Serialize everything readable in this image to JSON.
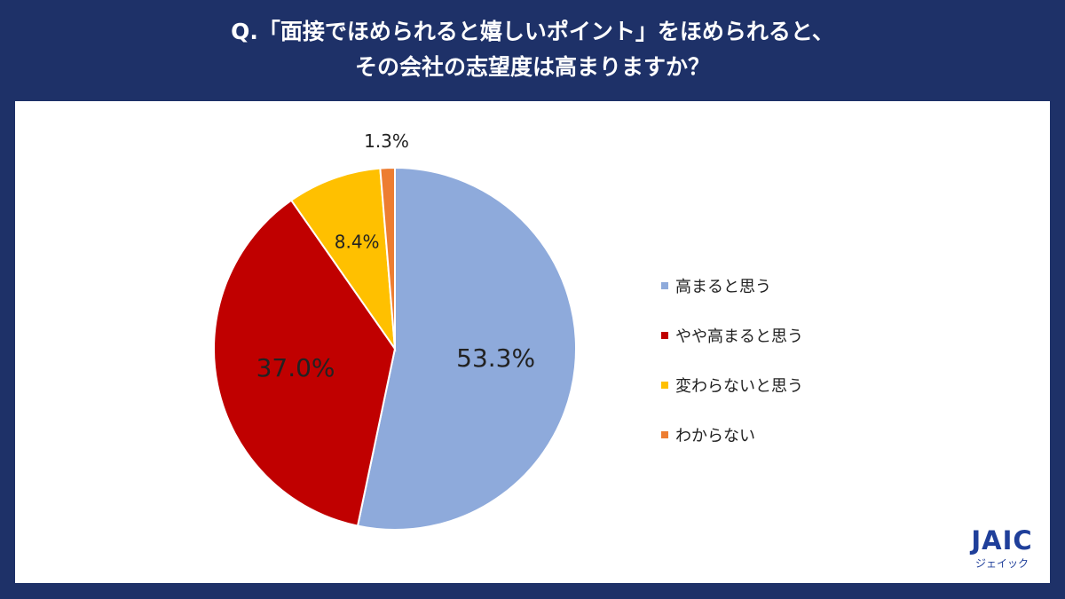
{
  "header": {
    "line1": "Q.「面接でほめられると嬉しいポイント」をほめられると、",
    "line2": "その会社の志望度は高まりますか？"
  },
  "chart_data": {
    "type": "pie",
    "categories": [
      "高まると思う",
      "やや高まると思う",
      "変わらないと思う",
      "わからない"
    ],
    "values": [
      53.3,
      37.0,
      8.4,
      1.3
    ],
    "labels": [
      "53.3%",
      "37.0%",
      "8.4%",
      "1.3%"
    ],
    "colors": [
      "#8eaadb",
      "#c00000",
      "#ffc000",
      "#ed7d31"
    ],
    "legend_position": "right",
    "start_angle": "12 o'clock",
    "direction": "clockwise"
  },
  "logo": {
    "mark": "JAIC",
    "sub": "ジェイック"
  }
}
